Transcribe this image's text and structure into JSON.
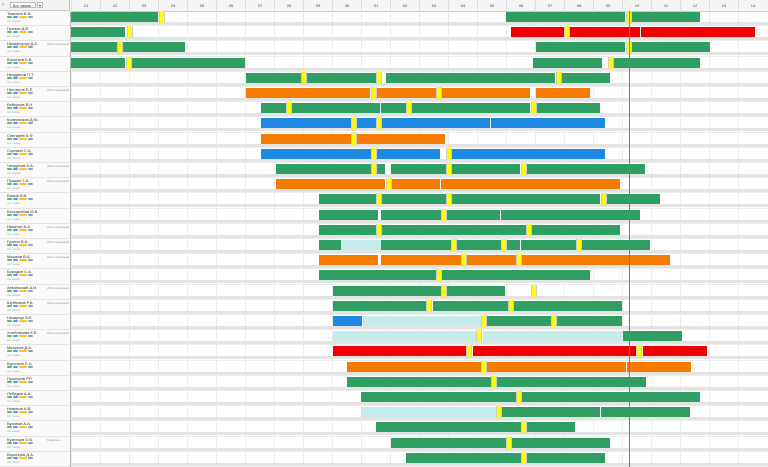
{
  "header": {
    "chevron": "‹",
    "filter_value": "Все заказы",
    "dropdown": "▾",
    "days": [
      "21",
      "22",
      "23",
      "24",
      "25",
      "26",
      "27",
      "28",
      "29",
      "30",
      "01",
      "02",
      "03",
      "04",
      "05",
      "06",
      "07",
      "08",
      "09",
      "10",
      "11",
      "12",
      "13",
      "14"
    ]
  },
  "colors": {
    "green": "#2e9e63",
    "orange": "#f57c00",
    "blue": "#1e88e5",
    "red": "#f00000",
    "yellow": "#ffff00",
    "light": "#c4ecea",
    "now_line": "#9b59d0"
  },
  "icons": [
    "phone-icon",
    "car-icon",
    "status-icon",
    "tag-icon"
  ],
  "drivers": [
    {
      "name": "Тимохин В.В.",
      "tag": "",
      "sub": "Нет заказа"
    },
    {
      "name": "Громов Д.В.",
      "tag": "",
      "sub": "Нет заказа"
    },
    {
      "name": "Никифорчук Д.Е.",
      "tag": "Испытательный срок",
      "sub": "Нет заказа"
    },
    {
      "name": "Коротков Б.В.",
      "tag": "",
      "sub": "Нет заказа"
    },
    {
      "name": "Нежданов П.Т.",
      "tag": "",
      "sub": "Нет заказа"
    },
    {
      "name": "Нестеров Е.Е.",
      "tag": "Испытательный срок",
      "sub": "Нет заказа"
    },
    {
      "name": "Бейкулов В.Н.",
      "tag": "",
      "sub": "Нет заказа"
    },
    {
      "name": "Колесников Д.Ю.",
      "tag": "",
      "sub": "Нет заказа"
    },
    {
      "name": "Снегирёв Б.Ф.",
      "tag": "",
      "sub": "Нет заказа"
    },
    {
      "name": "Сорокин С.А.",
      "tag": "",
      "sub": "Нет заказа"
    },
    {
      "name": "Челданов А.А.",
      "tag": "Испытательный срок",
      "sub": "Нет заказа"
    },
    {
      "name": "Пушкин Т.А.",
      "tag": "Испытательный срок",
      "sub": "Нет заказа"
    },
    {
      "name": "Быков А.В.",
      "tag": "",
      "sub": "Нет заказа"
    },
    {
      "name": "Бессарабов М.В.",
      "tag": "",
      "sub": "Нет заказа"
    },
    {
      "name": "Никитин А.А.",
      "tag": "Испытательный срок",
      "sub": "Нет заказа"
    },
    {
      "name": "Грунин В.А.",
      "tag": "Испытательный срок",
      "sub": "Нет заказа"
    },
    {
      "name": "Мешков В.А.",
      "tag": "Испытательный срок",
      "sub": "Нет заказа"
    },
    {
      "name": "Бородин С.А.",
      "tag": "",
      "sub": "Нет заказа"
    },
    {
      "name": "Атвальский А.И.",
      "tag": "Испытательный срок",
      "sub": "Нет заказа"
    },
    {
      "name": "Шубников Р.А.",
      "tag": "Испытательный срок",
      "sub": "Нет заказа"
    },
    {
      "name": "Назарчук А.Е.",
      "tag": "",
      "sub": "Нет заказа"
    },
    {
      "name": "Хлебникова К.Е.",
      "tag": "Испытательный срок",
      "sub": "Нет заказа"
    },
    {
      "name": "Мелихов Д.А.",
      "tag": "",
      "sub": "Нет заказа"
    },
    {
      "name": "Курочкин Е.А.",
      "tag": "",
      "sub": "Нет заказа"
    },
    {
      "name": "Прохоров Р.Р.",
      "tag": "",
      "sub": "Нет заказа"
    },
    {
      "name": "Лебедев А.А.",
      "tag": "",
      "sub": "Нет заказа"
    },
    {
      "name": "Новиков А.В.",
      "tag": "",
      "sub": "Нет заказа"
    },
    {
      "name": "Буханов А.А.",
      "tag": "",
      "sub": "Нет заказа"
    },
    {
      "name": "Кузнецов О.Б.",
      "tag": "Водитель",
      "sub": "Нет заказа"
    },
    {
      "name": "Воронцов Д.А.",
      "tag": "",
      "sub": "Нет заказа"
    }
  ]
}
